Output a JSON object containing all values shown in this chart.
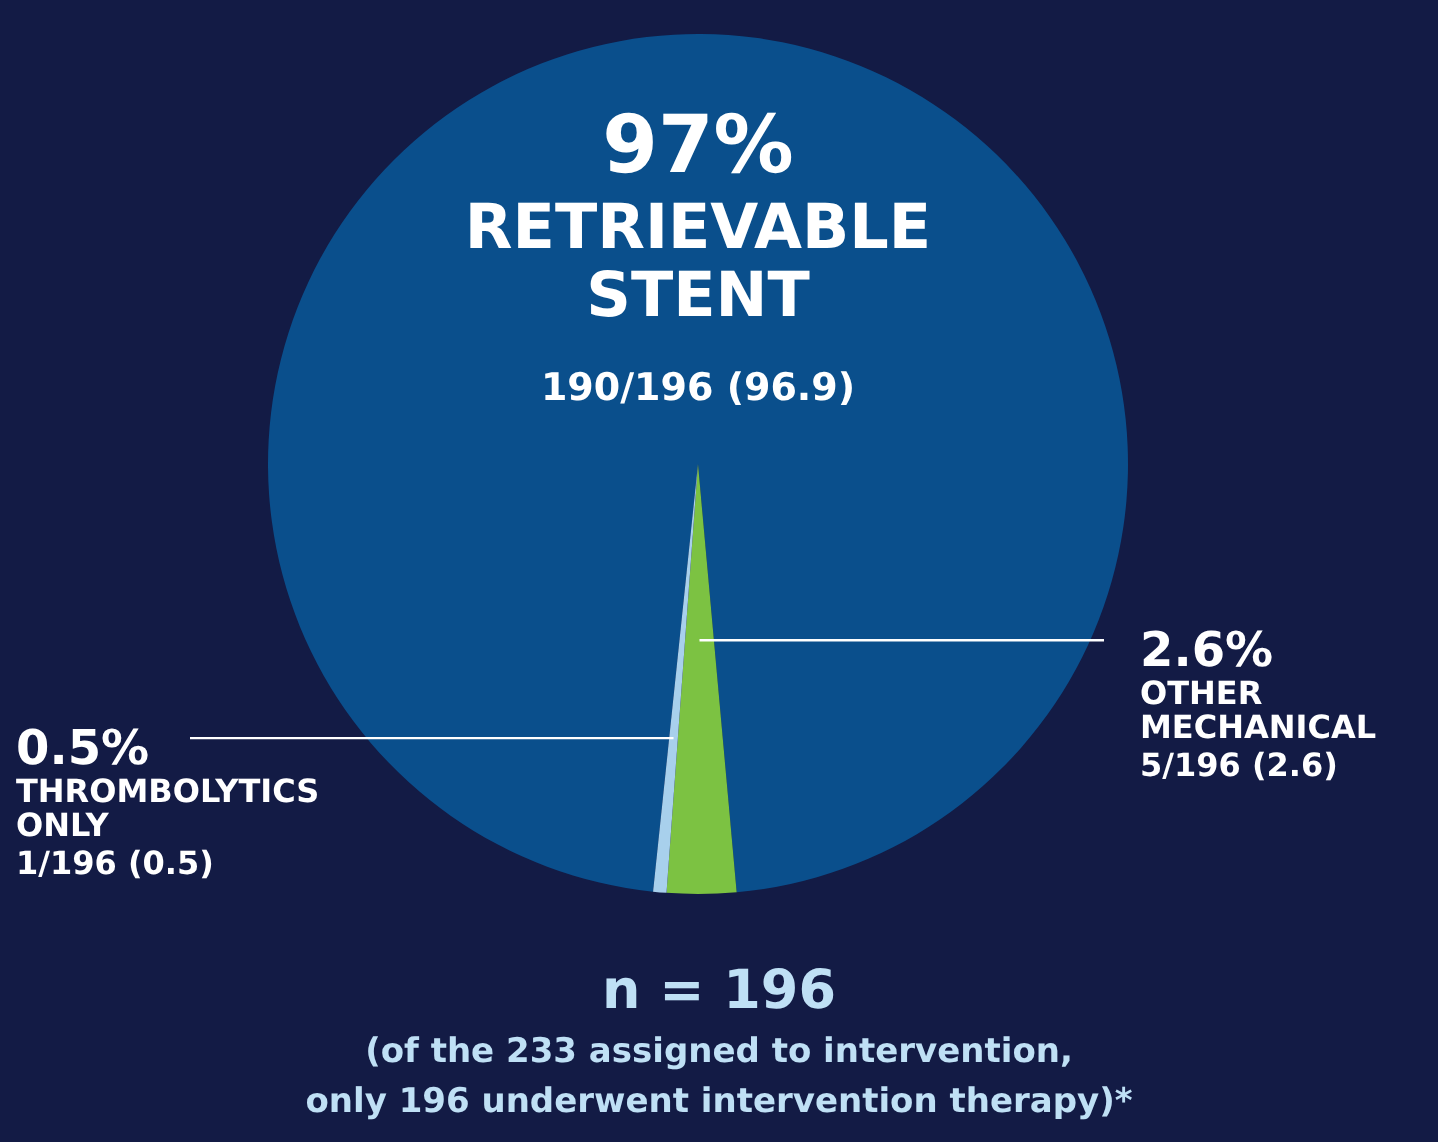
{
  "chart_data": {
    "type": "pie",
    "categories": [
      "RETRIEVABLE STENT",
      "OTHER MECHANICAL",
      "THROMBOLYTICS ONLY"
    ],
    "values": [
      96.9,
      2.6,
      0.5
    ],
    "value_labels": [
      "97%",
      "2.6%",
      "0.5%"
    ],
    "colors": [
      "#0a4f8c",
      "#7cc242",
      "#a8d0ec"
    ],
    "annotations": [
      {
        "text": "190/196 (96.9)",
        "x": "RETRIEVABLE STENT"
      },
      {
        "text": "5/196 (2.6)",
        "x": "OTHER MECHANICAL"
      },
      {
        "text": "1/196 (0.5)",
        "x": "THROMBOLYTICS ONLY"
      },
      "n = 196",
      "(of the 233 assigned to intervention,",
      "only 196 underwent intervention therapy)*"
    ]
  }
}
